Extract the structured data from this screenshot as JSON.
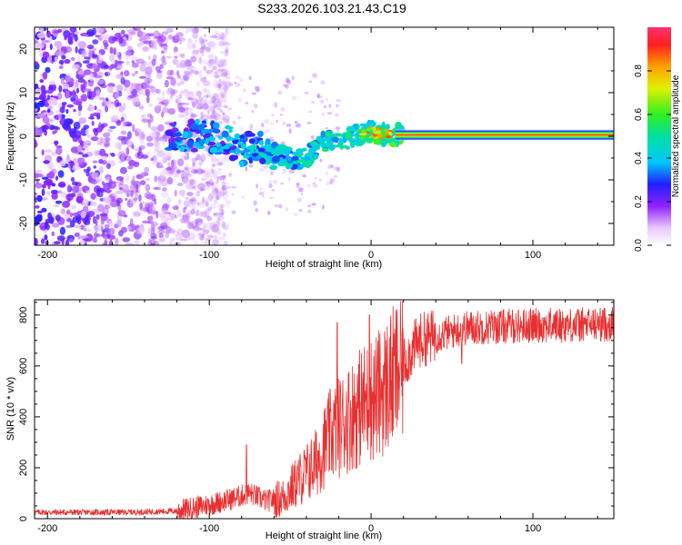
{
  "title": "S233.2026.103.21.43.C19",
  "chart_data": [
    {
      "type": "heatmap",
      "name": "spectrogram",
      "xlabel": "Height of straight line (km)",
      "ylabel": "Frequency (Hz)",
      "xlim": [
        -208,
        150
      ],
      "ylim": [
        -25,
        25
      ],
      "xticks": [
        -200,
        -100,
        0,
        100
      ],
      "xtick_labels": [
        "-200",
        "-100",
        "0",
        "100"
      ],
      "yticks": [
        -20,
        -10,
        0,
        10,
        20
      ],
      "ytick_labels": [
        "-20",
        "-10",
        "0",
        "10",
        "20"
      ],
      "colorbar": {
        "label": "Normalized spectral amplitude",
        "range": [
          0,
          1
        ],
        "ticks": [
          0.0,
          0.2,
          0.4,
          0.6,
          0.8
        ],
        "tick_labels": [
          "0.0",
          "0.2",
          "0.4",
          "0.6",
          "0.8"
        ]
      },
      "ridge": {
        "x": [
          -120,
          -100,
          -90,
          -80,
          -70,
          -60,
          -50,
          -40,
          -30,
          -20,
          -10,
          0,
          10,
          20,
          150
        ],
        "y": [
          0,
          0,
          -1,
          -3,
          -2,
          -4,
          -5,
          -5,
          -1,
          -1,
          0,
          1,
          0.3,
          0.3,
          0.3
        ]
      },
      "strong_line": {
        "x_start": 15,
        "x_end": 150,
        "y": 0.3
      }
    },
    {
      "type": "line",
      "name": "snr",
      "xlabel": "Height of straight line (km)",
      "ylabel": "SNR (10 * v/v)",
      "xlim": [
        -208,
        150
      ],
      "ylim": [
        0,
        860
      ],
      "xticks": [
        -200,
        -100,
        0,
        100
      ],
      "xtick_labels": [
        "-200",
        "-100",
        "0",
        "100"
      ],
      "yticks": [
        0,
        200,
        400,
        600,
        800
      ],
      "ytick_labels": [
        "0",
        "200",
        "400",
        "600",
        "800"
      ],
      "color": "#e83030",
      "envelope": {
        "x": [
          -208,
          -150,
          -120,
          -100,
          -85,
          -75,
          -65,
          -55,
          -45,
          -35,
          -25,
          -15,
          -5,
          5,
          15,
          25,
          30,
          50,
          55,
          60,
          80,
          100,
          120,
          150
        ],
        "y": [
          25,
          25,
          30,
          55,
          80,
          100,
          70,
          80,
          150,
          210,
          330,
          390,
          450,
          490,
          560,
          660,
          700,
          735,
          745,
          750,
          755,
          760,
          760,
          765
        ]
      },
      "spikes": [
        {
          "x": -77,
          "y": 290
        },
        {
          "x": -21,
          "y": 770
        },
        {
          "x": -1,
          "y": 800
        },
        {
          "x": 56,
          "y": 610
        }
      ]
    }
  ]
}
